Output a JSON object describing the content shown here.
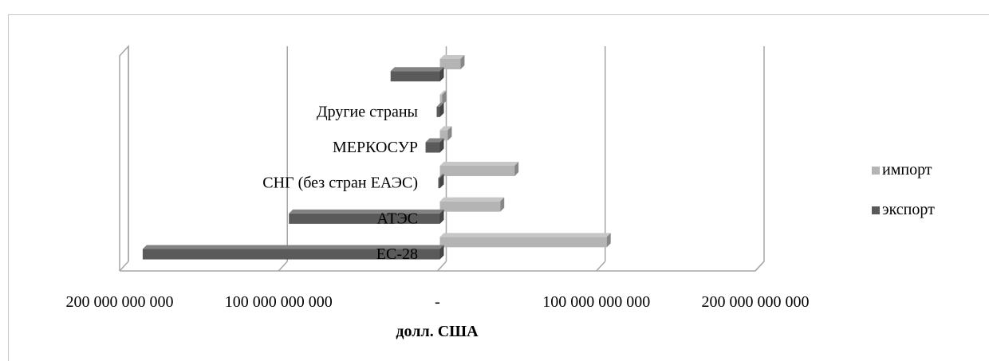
{
  "chart_data": {
    "type": "bar",
    "orientation": "horizontal",
    "style": "3d",
    "categories": [
      "ЕС-28",
      "АТЭС",
      "СНГ (без стран ЕАЭС)",
      "МЕРКОСУР",
      "Другие страны",
      ""
    ],
    "series": [
      {
        "name": "экспорт",
        "color": "#5a5a5a",
        "values": [
          -187000000000,
          -95000000000,
          -1000000000,
          -9000000000,
          -2000000000,
          -31000000000
        ]
      },
      {
        "name": "импорт",
        "color": "#b4b4b4",
        "values": [
          105000000000,
          38000000000,
          47000000000,
          5000000000,
          1500000000,
          13000000000
        ]
      }
    ],
    "xlim": [
      -200000000000,
      200000000000
    ],
    "x_ticks": [
      -200000000000,
      -100000000000,
      0,
      100000000000,
      200000000000
    ],
    "x_tick_labels": [
      "200 000 000 000",
      "100 000 000 000",
      "-",
      "100 000 000 000",
      "200 000 000 000"
    ],
    "xlabel": "долл. США",
    "legend": {
      "position": "right",
      "entries": [
        "импорт",
        "экспорт"
      ]
    },
    "grid": true
  }
}
